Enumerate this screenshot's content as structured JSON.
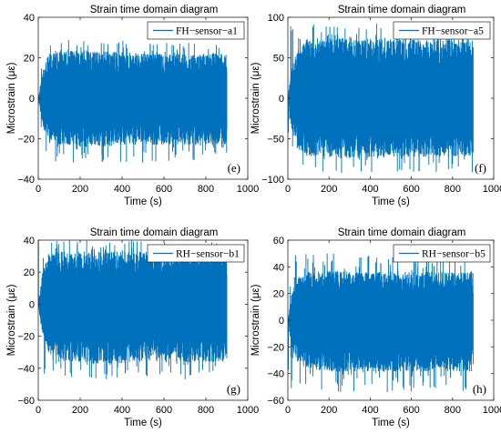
{
  "chart_data": [
    {
      "type": "line",
      "title": "Strain time domain diagram",
      "xlabel": "Time (s)",
      "ylabel": "Microstrain (με)",
      "xlim": [
        0,
        1000
      ],
      "ylim": [
        -40,
        40
      ],
      "xticks": [
        0,
        200,
        400,
        600,
        800,
        1000
      ],
      "yticks": [
        -40,
        -20,
        0,
        20,
        40
      ],
      "grid": false,
      "legend_position": "top-right",
      "panel_label": "(e)",
      "series": [
        {
          "name": "FH−sensor−a1",
          "color": "#0072BD",
          "x": [
            0,
            20,
            50,
            100,
            200,
            300,
            400,
            500,
            600,
            700,
            800,
            900
          ],
          "y_upper": [
            0,
            12,
            20,
            22,
            22,
            21,
            21,
            20,
            20,
            20,
            20,
            20
          ],
          "y_lower": [
            0,
            -12,
            -20,
            -21,
            -22,
            -22,
            -21,
            -21,
            -21,
            -21,
            -21,
            -21
          ],
          "peak_max": 29,
          "peak_min": -32
        }
      ]
    },
    {
      "type": "line",
      "title": "Strain time domain diagram",
      "xlabel": "Time (s)",
      "ylabel": "Microstrain (με)",
      "xlim": [
        0,
        1000
      ],
      "ylim": [
        -100,
        100
      ],
      "xticks": [
        0,
        200,
        400,
        600,
        800,
        1000
      ],
      "yticks": [
        -100,
        -50,
        0,
        50,
        100
      ],
      "grid": false,
      "legend_position": "top-right",
      "panel_label": "(f)",
      "series": [
        {
          "name": "FH−sensor−a5",
          "color": "#0072BD",
          "x": [
            0,
            20,
            50,
            100,
            200,
            300,
            400,
            500,
            600,
            700,
            800,
            900
          ],
          "y_upper": [
            0,
            38,
            58,
            65,
            68,
            68,
            67,
            66,
            66,
            66,
            66,
            66
          ],
          "y_lower": [
            0,
            -38,
            -58,
            -65,
            -66,
            -67,
            -66,
            -66,
            -66,
            -66,
            -66,
            -66
          ],
          "peak_max": 92,
          "peak_min": -93
        }
      ]
    },
    {
      "type": "line",
      "title": "Strain time domain diagram",
      "xlabel": "Time (s)",
      "ylabel": "Microstrain (με)",
      "xlim": [
        0,
        1000
      ],
      "ylim": [
        -60,
        40
      ],
      "xticks": [
        0,
        200,
        400,
        600,
        800,
        1000
      ],
      "yticks": [
        -60,
        -40,
        -20,
        0,
        20,
        40
      ],
      "grid": false,
      "legend_position": "top-right",
      "panel_label": "(g)",
      "series": [
        {
          "name": "RH−sensor−b1",
          "color": "#0072BD",
          "x": [
            0,
            20,
            50,
            100,
            200,
            300,
            400,
            500,
            600,
            700,
            800,
            900
          ],
          "y_upper": [
            0,
            18,
            28,
            30,
            30,
            30,
            30,
            30,
            30,
            30,
            30,
            30
          ],
          "y_lower": [
            0,
            -18,
            -28,
            -32,
            -33,
            -34,
            -34,
            -33,
            -33,
            -33,
            -33,
            -33
          ],
          "peak_max": 40,
          "peak_min": -47
        }
      ]
    },
    {
      "type": "line",
      "title": "Strain time domain diagram",
      "xlabel": "Time (s)",
      "ylabel": "Microstrain (με)",
      "xlim": [
        0,
        1000
      ],
      "ylim": [
        -60,
        60
      ],
      "xticks": [
        0,
        200,
        400,
        600,
        800,
        1000
      ],
      "yticks": [
        -60,
        -40,
        -20,
        0,
        20,
        40,
        60
      ],
      "grid": false,
      "legend_position": "top-right",
      "panel_label": "(h)",
      "series": [
        {
          "name": "RH−sensor−b5",
          "color": "#0072BD",
          "x": [
            0,
            20,
            50,
            100,
            200,
            300,
            400,
            500,
            600,
            700,
            800,
            900
          ],
          "y_upper": [
            0,
            20,
            30,
            33,
            34,
            34,
            33,
            33,
            33,
            33,
            33,
            33
          ],
          "y_lower": [
            0,
            -20,
            -30,
            -34,
            -35,
            -35,
            -35,
            -35,
            -35,
            -35,
            -35,
            -35
          ],
          "peak_max": 50,
          "peak_min": -54
        }
      ]
    }
  ]
}
